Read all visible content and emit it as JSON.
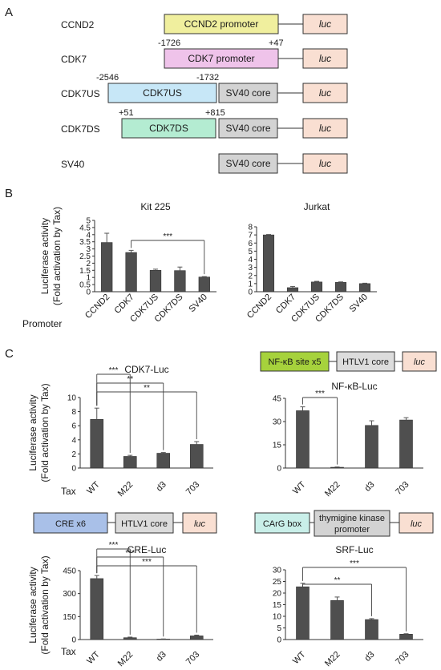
{
  "panels": {
    "a": "A",
    "b": "B",
    "c": "C"
  },
  "constructs": [
    {
      "name": "CCND2",
      "segments": [
        {
          "label": "CCND2 promoter",
          "color": "#f0ef9e"
        }
      ],
      "luc": "luc",
      "coords": []
    },
    {
      "name": "CDK7",
      "segments": [
        {
          "label": "CDK7 promoter",
          "color": "#efc3ea"
        }
      ],
      "luc": "luc",
      "coords": [
        "-1726",
        "+47"
      ]
    },
    {
      "name": "CDK7US",
      "segments": [
        {
          "label": "CDK7US",
          "color": "#c7e7f7"
        },
        {
          "label": "SV40 core",
          "color": "#d3d3d3"
        }
      ],
      "luc": "luc",
      "coords": [
        "-2546",
        "-1732"
      ]
    },
    {
      "name": "CDK7DS",
      "segments": [
        {
          "label": "CDK7DS",
          "color": "#b4ecd2"
        },
        {
          "label": "SV40 core",
          "color": "#d3d3d3"
        }
      ],
      "luc": "luc",
      "coords": [
        "+51",
        "+815"
      ]
    },
    {
      "name": "SV40",
      "segments": [
        {
          "label": "SV40 core",
          "color": "#d3d3d3"
        }
      ],
      "luc": "luc",
      "coords": []
    }
  ],
  "colors": {
    "bar": "#4f4f4f",
    "luc": "#f9dfd2",
    "axis": "#333333",
    "nfkb": "#a6d23c",
    "htlv": "#dcdcdc",
    "cre": "#a9c0e8",
    "carg": "#c9efe9",
    "tk": "#d3d3d3"
  },
  "ylabel": [
    "Luciferase activity",
    "(Fold activation by Tax)"
  ],
  "promoter_label": "Promoter",
  "tax_label": "Tax",
  "diagrams": {
    "nfkb": [
      "NF-κB site x5",
      "HTLV1 core",
      "luc"
    ],
    "cre": [
      "CRE x6",
      "HTLV1 core",
      "luc"
    ],
    "srf": [
      "CArG box",
      "thymigine kinase",
      "promoter",
      "luc"
    ]
  },
  "chart_data": [
    {
      "type": "bar",
      "title": "Kit 225",
      "categories": [
        "CCND2",
        "CDK7",
        "CDK7US",
        "CDK7DS",
        "SV40"
      ],
      "values": [
        3.45,
        2.75,
        1.5,
        1.48,
        1.03
      ],
      "errors": [
        0.65,
        0.15,
        0.08,
        0.25,
        0.03
      ],
      "ylim": [
        0,
        5
      ],
      "yticks": [
        "0",
        "0.5",
        "1",
        "1.5",
        "2",
        "2.5",
        "3",
        "3.5",
        "4",
        "4.5",
        "5"
      ],
      "significance": [
        {
          "from": 1,
          "to": 4,
          "label": "***"
        }
      ]
    },
    {
      "type": "bar",
      "title": "Jurkat",
      "categories": [
        "CCND2",
        "CDK7",
        "CDK7US",
        "CDK7DS",
        "SV40"
      ],
      "values": [
        7.0,
        0.5,
        1.2,
        1.15,
        1.0
      ],
      "errors": [
        0.05,
        0.15,
        0.08,
        0.06,
        0.05
      ],
      "ylim": [
        0,
        8
      ],
      "yticks": [
        "0",
        "1",
        "2",
        "3",
        "4",
        "5",
        "6",
        "7",
        "8"
      ],
      "significance": []
    },
    {
      "type": "bar",
      "title": "CDK7-Luc",
      "categories": [
        "WT",
        "M22",
        "d3",
        "703"
      ],
      "values": [
        6.9,
        1.65,
        2.1,
        3.35
      ],
      "errors": [
        1.6,
        0.15,
        0.1,
        0.4
      ],
      "ylim": [
        0,
        10
      ],
      "yticks": [
        "0",
        "2",
        "4",
        "6",
        "8",
        "10"
      ],
      "significance": [
        {
          "from": 0,
          "to": 1,
          "label": "***"
        },
        {
          "from": 0,
          "to": 2,
          "label": "**"
        },
        {
          "from": 0,
          "to": 3,
          "label": "**"
        }
      ]
    },
    {
      "type": "bar",
      "title": "NF-κB-Luc",
      "categories": [
        "WT",
        "M22",
        "d3",
        "703"
      ],
      "values": [
        37.0,
        0.5,
        27.5,
        31.0
      ],
      "errors": [
        2.5,
        0.2,
        3.0,
        1.5
      ],
      "ylim": [
        0,
        45
      ],
      "yticks": [
        "0",
        "15",
        "30",
        "45"
      ],
      "significance": [
        {
          "from": 0,
          "to": 1,
          "label": "***"
        }
      ]
    },
    {
      "type": "bar",
      "title": "CRE-Luc",
      "categories": [
        "WT",
        "M22",
        "d3",
        "703"
      ],
      "values": [
        398,
        12,
        3,
        24
      ],
      "errors": [
        20,
        4,
        1,
        5
      ],
      "ylim": [
        0,
        450
      ],
      "yticks": [
        "0",
        "150",
        "300",
        "450"
      ],
      "significance": [
        {
          "from": 0,
          "to": 1,
          "label": "***"
        },
        {
          "from": 0,
          "to": 2,
          "label": "***"
        },
        {
          "from": 0,
          "to": 3,
          "label": "***"
        }
      ]
    },
    {
      "type": "bar",
      "title": "SRF-Luc",
      "categories": [
        "WT",
        "M22",
        "d3",
        "703"
      ],
      "values": [
        22.7,
        16.8,
        8.6,
        2.3
      ],
      "errors": [
        1.5,
        1.5,
        0.4,
        0.2
      ],
      "ylim": [
        0,
        30
      ],
      "yticks": [
        "0",
        "5",
        "10",
        "15",
        "20",
        "25",
        "30"
      ],
      "significance": [
        {
          "from": 0,
          "to": 2,
          "label": "**"
        },
        {
          "from": 0,
          "to": 3,
          "label": "***"
        }
      ]
    }
  ]
}
